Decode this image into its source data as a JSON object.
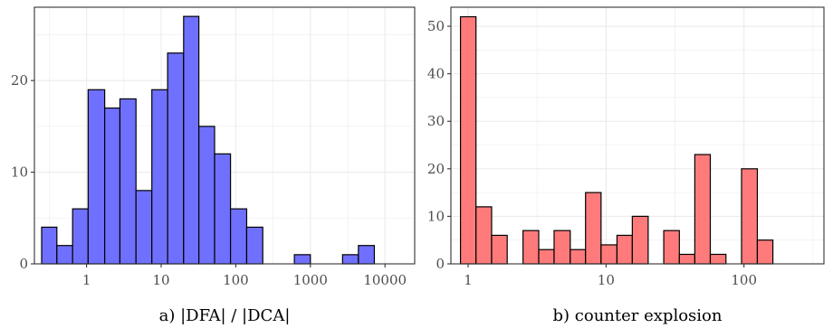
{
  "chart_data": [
    {
      "type": "bar",
      "title": "",
      "xlabel": "a) |DFA| / |DCA|",
      "ylabel": "",
      "x_scale": "log10",
      "grid": true,
      "color": "#7070ff",
      "ylim": [
        0,
        28
      ],
      "xlim": [
        0.2,
        25000
      ],
      "x_ticks": [
        1,
        10,
        100,
        1000,
        10000
      ],
      "x_tick_labels": [
        "1",
        "10",
        "100",
        "1000",
        "10000"
      ],
      "y_ticks": [
        0,
        10,
        20
      ],
      "y_tick_labels": [
        "0",
        "10",
        "20"
      ],
      "bins": [
        {
          "x0": 0.25,
          "x1": 0.4,
          "count": 4
        },
        {
          "x0": 0.4,
          "x1": 0.65,
          "count": 2
        },
        {
          "x0": 0.65,
          "x1": 1.05,
          "count": 6
        },
        {
          "x0": 1.05,
          "x1": 1.75,
          "count": 19
        },
        {
          "x0": 1.75,
          "x1": 2.8,
          "count": 17
        },
        {
          "x0": 2.8,
          "x1": 4.6,
          "count": 18
        },
        {
          "x0": 4.6,
          "x1": 7.5,
          "count": 8
        },
        {
          "x0": 7.5,
          "x1": 12.2,
          "count": 19
        },
        {
          "x0": 12.2,
          "x1": 20,
          "count": 23
        },
        {
          "x0": 20,
          "x1": 32,
          "count": 27
        },
        {
          "x0": 32,
          "x1": 52,
          "count": 15
        },
        {
          "x0": 52,
          "x1": 85,
          "count": 12
        },
        {
          "x0": 85,
          "x1": 140,
          "count": 6
        },
        {
          "x0": 140,
          "x1": 230,
          "count": 4
        },
        {
          "x0": 230,
          "x1": 375,
          "count": 0
        },
        {
          "x0": 375,
          "x1": 610,
          "count": 0
        },
        {
          "x0": 610,
          "x1": 1000,
          "count": 1
        },
        {
          "x0": 1000,
          "x1": 1650,
          "count": 0
        },
        {
          "x0": 1650,
          "x1": 2700,
          "count": 0
        },
        {
          "x0": 2700,
          "x1": 4400,
          "count": 1
        },
        {
          "x0": 4400,
          "x1": 7200,
          "count": 2
        }
      ]
    },
    {
      "type": "bar",
      "title": "",
      "xlabel": "b) counter explosion",
      "ylabel": "",
      "x_scale": "log10",
      "grid": true,
      "color": "#ff7b7b",
      "ylim": [
        0,
        54
      ],
      "xlim": [
        0.75,
        380
      ],
      "x_ticks": [
        1,
        10,
        100
      ],
      "x_tick_labels": [
        "1",
        "10",
        "100"
      ],
      "y_ticks": [
        0,
        10,
        20,
        30,
        40,
        50
      ],
      "y_tick_labels": [
        "0",
        "10",
        "20",
        "30",
        "40",
        "50"
      ],
      "bins": [
        {
          "x0": 0.88,
          "x1": 1.14,
          "count": 52
        },
        {
          "x0": 1.14,
          "x1": 1.48,
          "count": 12
        },
        {
          "x0": 1.48,
          "x1": 1.92,
          "count": 6
        },
        {
          "x0": 1.92,
          "x1": 2.5,
          "count": 0
        },
        {
          "x0": 2.5,
          "x1": 3.25,
          "count": 7
        },
        {
          "x0": 3.25,
          "x1": 4.2,
          "count": 3
        },
        {
          "x0": 4.2,
          "x1": 5.5,
          "count": 7
        },
        {
          "x0": 5.5,
          "x1": 7.1,
          "count": 3
        },
        {
          "x0": 7.1,
          "x1": 9.2,
          "count": 15
        },
        {
          "x0": 9.2,
          "x1": 12,
          "count": 4
        },
        {
          "x0": 12,
          "x1": 15.5,
          "count": 6
        },
        {
          "x0": 15.5,
          "x1": 20.2,
          "count": 10
        },
        {
          "x0": 20.2,
          "x1": 26.2,
          "count": 0
        },
        {
          "x0": 26.2,
          "x1": 34,
          "count": 7
        },
        {
          "x0": 34,
          "x1": 44,
          "count": 2
        },
        {
          "x0": 44,
          "x1": 57,
          "count": 23
        },
        {
          "x0": 57,
          "x1": 74,
          "count": 2
        },
        {
          "x0": 74,
          "x1": 96,
          "count": 0
        },
        {
          "x0": 96,
          "x1": 125,
          "count": 20
        },
        {
          "x0": 125,
          "x1": 162,
          "count": 5
        }
      ]
    }
  ]
}
